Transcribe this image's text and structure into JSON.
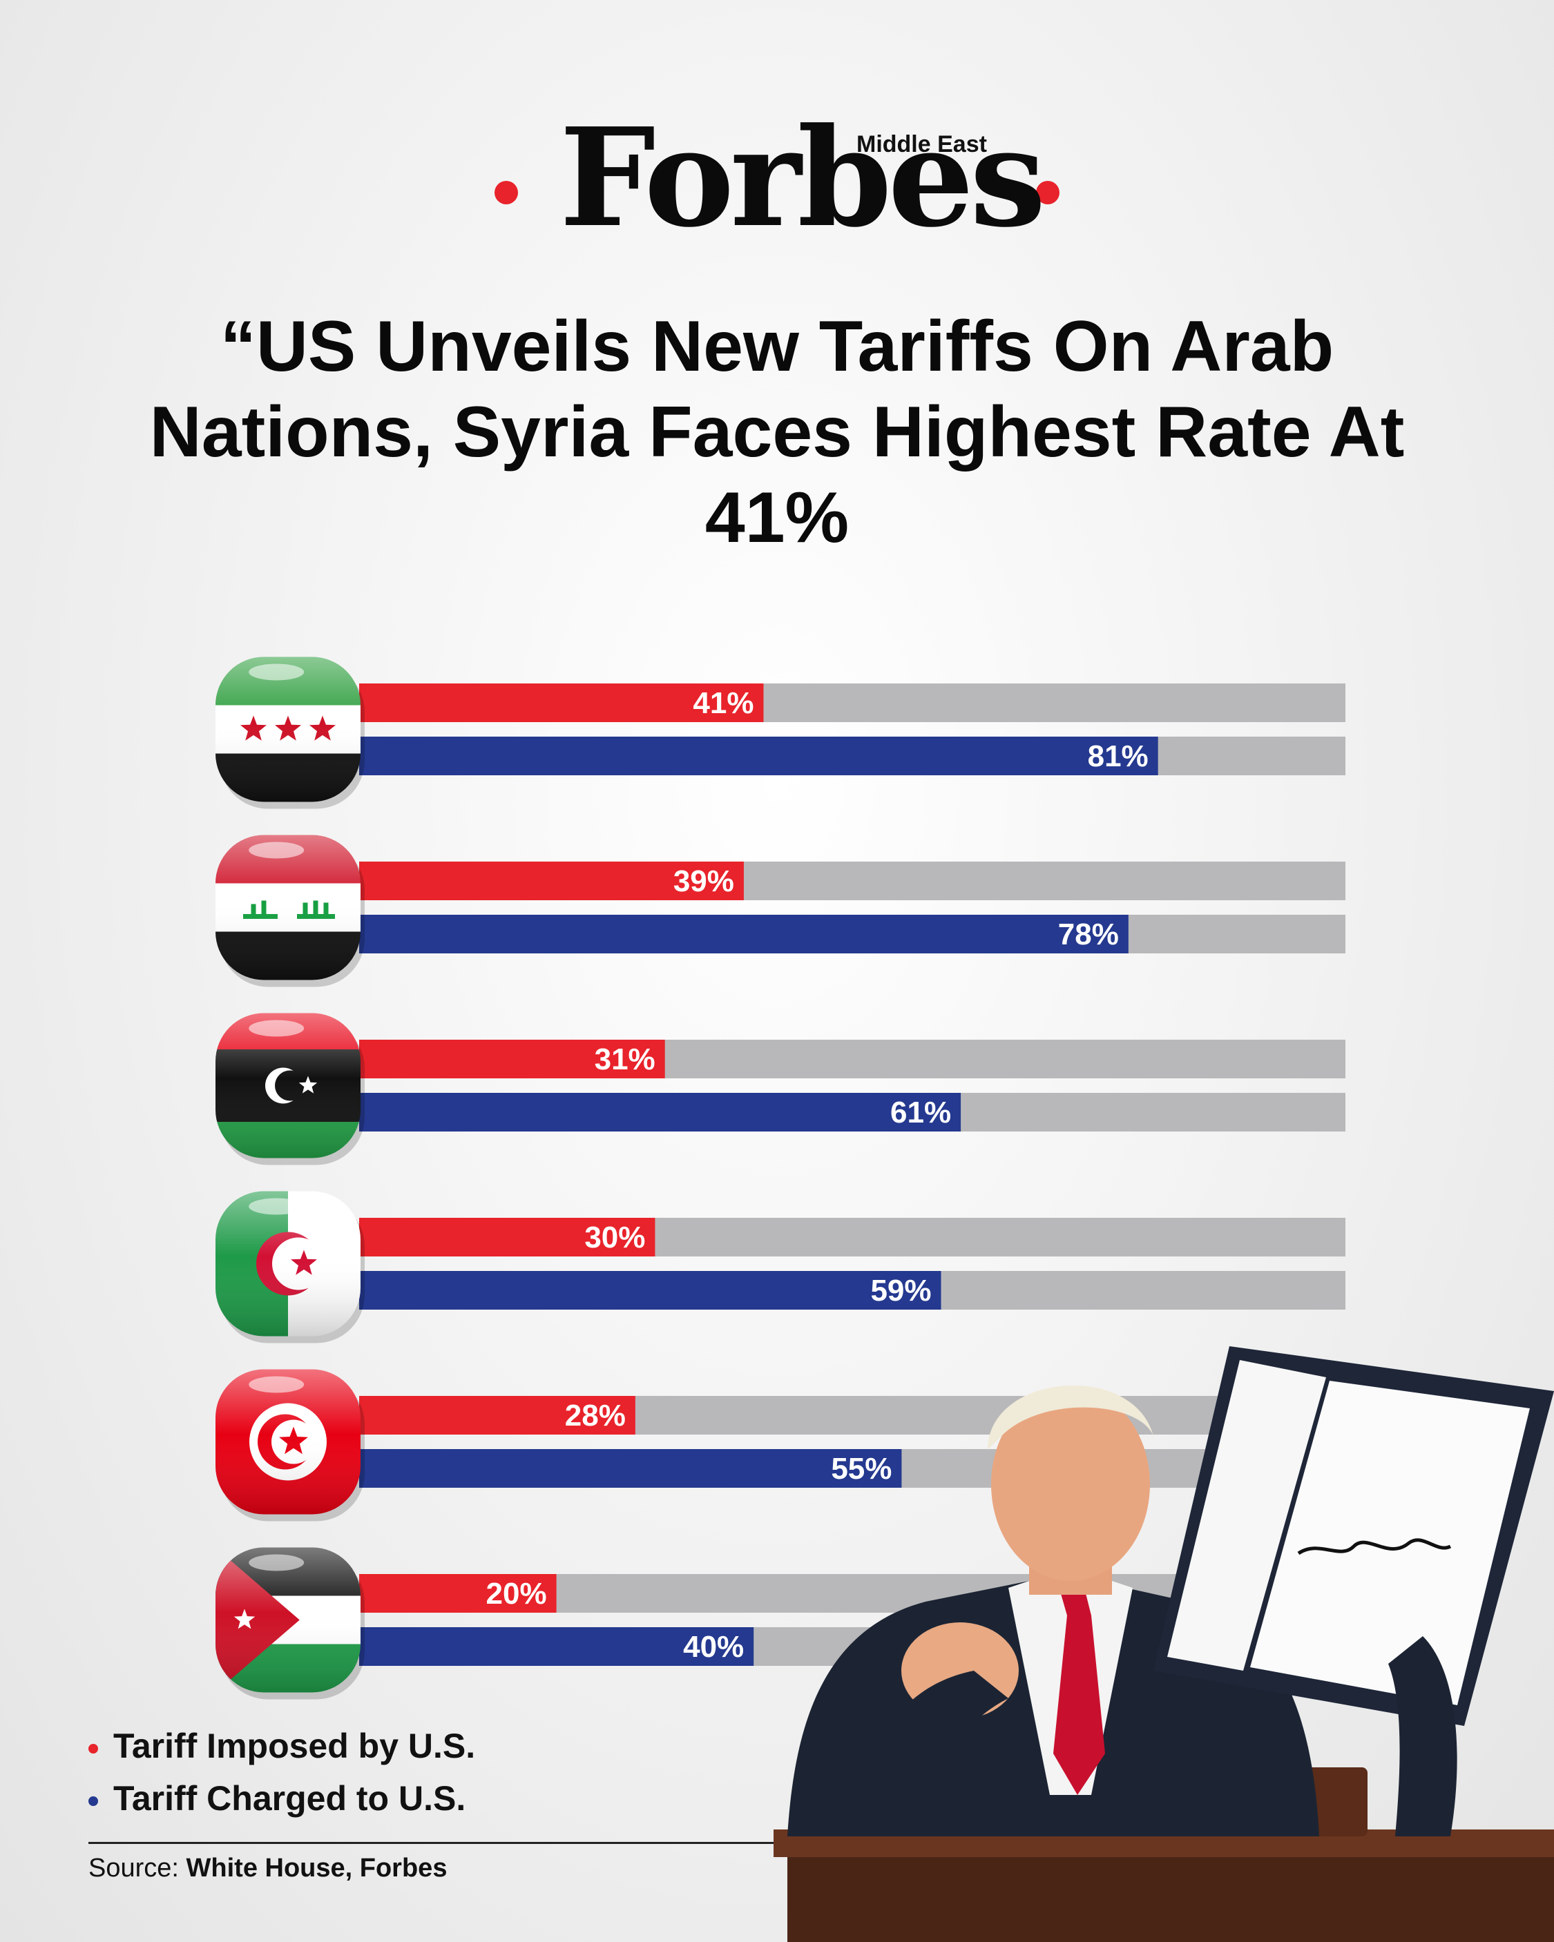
{
  "brand": {
    "logo": "Forbes",
    "edition": "Middle East",
    "accent_color": "#e8232b"
  },
  "headline": "“US Unveils New Tariffs On Arab Nations, Syria Faces Highest Rate At 41%",
  "legend": [
    {
      "label": "Tariff Imposed by U.S.",
      "color": "#e8232b"
    },
    {
      "label": "Tariff Charged to U.S.",
      "color": "#24398f"
    }
  ],
  "source": {
    "prefix": "Source: ",
    "name": "White House, Forbes"
  },
  "chart_data": {
    "type": "bar",
    "orientation": "horizontal",
    "ylim": [
      0,
      100
    ],
    "track_color": "#b8b8ba",
    "categories": [
      "syria-flag",
      "iraq-flag",
      "libya-flag",
      "algeria-flag",
      "tunisia-flag",
      "jordan-flag"
    ],
    "series": [
      {
        "name": "Tariff Imposed by U.S.",
        "color": "#e8232b",
        "values": [
          41,
          39,
          31,
          30,
          28,
          20
        ]
      },
      {
        "name": "Tariff Charged to U.S.",
        "color": "#24398f",
        "values": [
          81,
          78,
          61,
          59,
          55,
          40
        ]
      }
    ],
    "value_suffix": "%"
  },
  "photo": {
    "icon": "president-holding-signed-order"
  }
}
